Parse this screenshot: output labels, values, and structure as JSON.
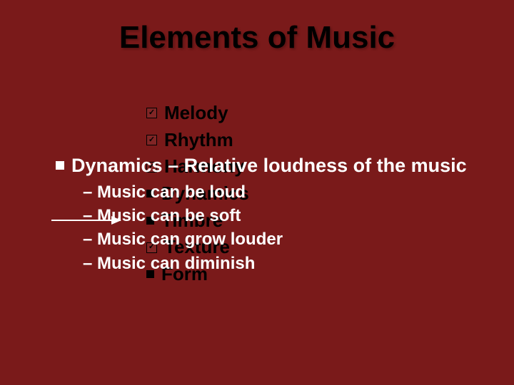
{
  "slide": {
    "title": "Elements of Music",
    "background_color": "#7a1a1a",
    "title_color": "#000000",
    "bg_bullets_color": "#000000",
    "fg_text_color": "#ffffff",
    "arrow_color": "#ffffff"
  },
  "bg_list": {
    "items": [
      {
        "label": "Melody",
        "bullet": "checkbox"
      },
      {
        "label": "Rhythm",
        "bullet": "checkbox"
      },
      {
        "label": "Harmony",
        "bullet": "checkbox"
      },
      {
        "label": "Dynamics",
        "bullet": "square"
      },
      {
        "label": "Timbre",
        "bullet": "square"
      },
      {
        "label": "Texture",
        "bullet": "checkbox"
      },
      {
        "label": "Form",
        "bullet": "square"
      }
    ]
  },
  "fg": {
    "heading": "Dynamics – Relative loudness of the music",
    "sub": [
      "Music can be loud",
      "Music can be soft",
      "Music can grow louder",
      "Music can diminish"
    ]
  }
}
